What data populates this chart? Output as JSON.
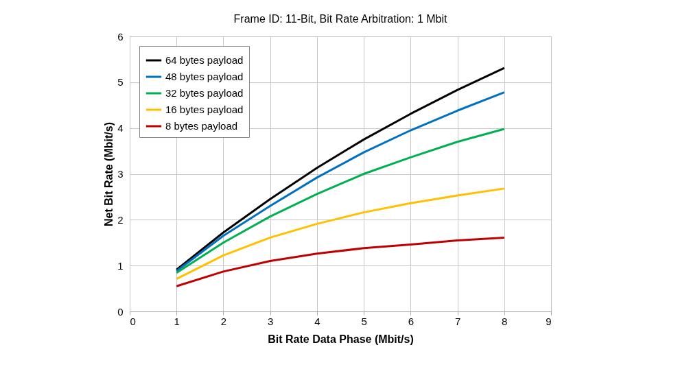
{
  "chart_data": {
    "type": "line",
    "title": "Frame ID: 11-Bit, Bit Rate Arbitration: 1 Mbit",
    "xlabel": "Bit Rate Data Phase (Mbit/s)",
    "ylabel": "Net Bit Rate (Mbit/s)",
    "x": [
      1,
      2,
      3,
      4,
      5,
      6,
      7,
      8
    ],
    "series": [
      {
        "name": "64 bytes payload",
        "color": "#000000",
        "values": [
          0.91,
          1.72,
          2.45,
          3.13,
          3.75,
          4.31,
          4.83,
          5.31
        ]
      },
      {
        "name": "48 bytes payload",
        "color": "#0070c0",
        "values": [
          0.88,
          1.65,
          2.3,
          2.92,
          3.47,
          3.95,
          4.38,
          4.78
        ]
      },
      {
        "name": "32 bytes payload",
        "color": "#00b050",
        "values": [
          0.84,
          1.5,
          2.07,
          2.56,
          3.0,
          3.36,
          3.7,
          3.98
        ]
      },
      {
        "name": "16 bytes payload",
        "color": "#ffc000",
        "values": [
          0.71,
          1.22,
          1.61,
          1.91,
          2.16,
          2.36,
          2.53,
          2.68
        ]
      },
      {
        "name": "8 bytes payload",
        "color": "#c00000",
        "values": [
          0.55,
          0.87,
          1.1,
          1.26,
          1.38,
          1.46,
          1.55,
          1.61
        ]
      }
    ],
    "xlim": [
      0,
      9
    ],
    "xticks": [
      0,
      1,
      2,
      3,
      4,
      5,
      6,
      7,
      8,
      9
    ],
    "ylim": [
      0,
      6
    ],
    "yticks": [
      0,
      1,
      2,
      3,
      4,
      5,
      6
    ],
    "grid": true,
    "legend": "top left",
    "marker": "none",
    "line_style": "solid"
  }
}
